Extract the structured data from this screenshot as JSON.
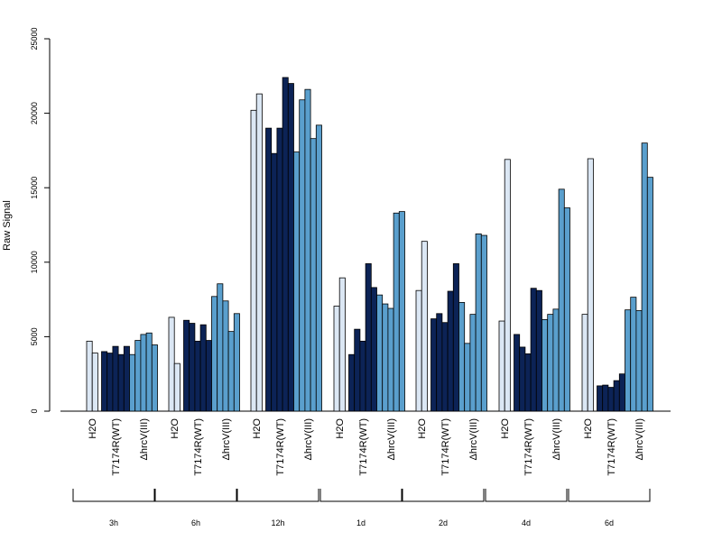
{
  "chart_data": {
    "type": "bar",
    "ylabel": "Raw Signal",
    "xlabel": "",
    "ylim": [
      0,
      25000
    ],
    "yticks": [
      0,
      5000,
      10000,
      15000,
      20000,
      25000
    ],
    "groups": [
      "3h",
      "6h",
      "12h",
      "1d",
      "2d",
      "4d",
      "6d"
    ],
    "conditions": [
      "H2O",
      "T7174R(WT)",
      "ΔhrcV(III)"
    ],
    "colors": {
      "H2O": "#dbe7f4",
      "T7174R(WT)": "#0c2356",
      "ΔhrcV(III)": "#5a9fcd"
    },
    "series": [
      {
        "group": "3h",
        "H2O": [
          4700,
          3900
        ],
        "T7174R(WT)": [
          4000,
          3900,
          4350,
          3800,
          4350
        ],
        "ΔhrcV(III)": [
          3800,
          4750,
          5150,
          5250,
          4450
        ]
      },
      {
        "group": "6h",
        "H2O": [
          6300,
          3200
        ],
        "T7174R(WT)": [
          6100,
          5900,
          4700,
          5800,
          4750
        ],
        "ΔhrcV(III)": [
          7700,
          8550,
          7400,
          5350,
          6550
        ]
      },
      {
        "group": "12h",
        "H2O": [
          20200,
          21300
        ],
        "T7174R(WT)": [
          19000,
          17300,
          19000,
          22400,
          22000
        ],
        "ΔhrcV(III)": [
          17400,
          20900,
          21600,
          18300,
          19200
        ]
      },
      {
        "group": "1d",
        "H2O": [
          7050,
          8950
        ],
        "T7174R(WT)": [
          3800,
          5500,
          4700,
          9900,
          8300
        ],
        "ΔhrcV(III)": [
          7800,
          7200,
          6900,
          13300,
          13400
        ]
      },
      {
        "group": "2d",
        "H2O": [
          8100,
          11400
        ],
        "T7174R(WT)": [
          6200,
          6550,
          5950,
          8050,
          9900
        ],
        "ΔhrcV(III)": [
          7300,
          4550,
          6500,
          11900,
          11800
        ]
      },
      {
        "group": "4d",
        "H2O": [
          6050,
          16900
        ],
        "T7174R(WT)": [
          5150,
          4300,
          3850,
          8250,
          8100
        ],
        "ΔhrcV(III)": [
          6150,
          6500,
          6850,
          14900,
          13650
        ]
      },
      {
        "group": "6d",
        "H2O": [
          6500,
          16950
        ],
        "T7174R(WT)": [
          1700,
          1750,
          1600,
          2050,
          2500
        ],
        "ΔhrcV(III)": [
          6800,
          7650,
          6750,
          18000,
          15700
        ]
      }
    ]
  }
}
